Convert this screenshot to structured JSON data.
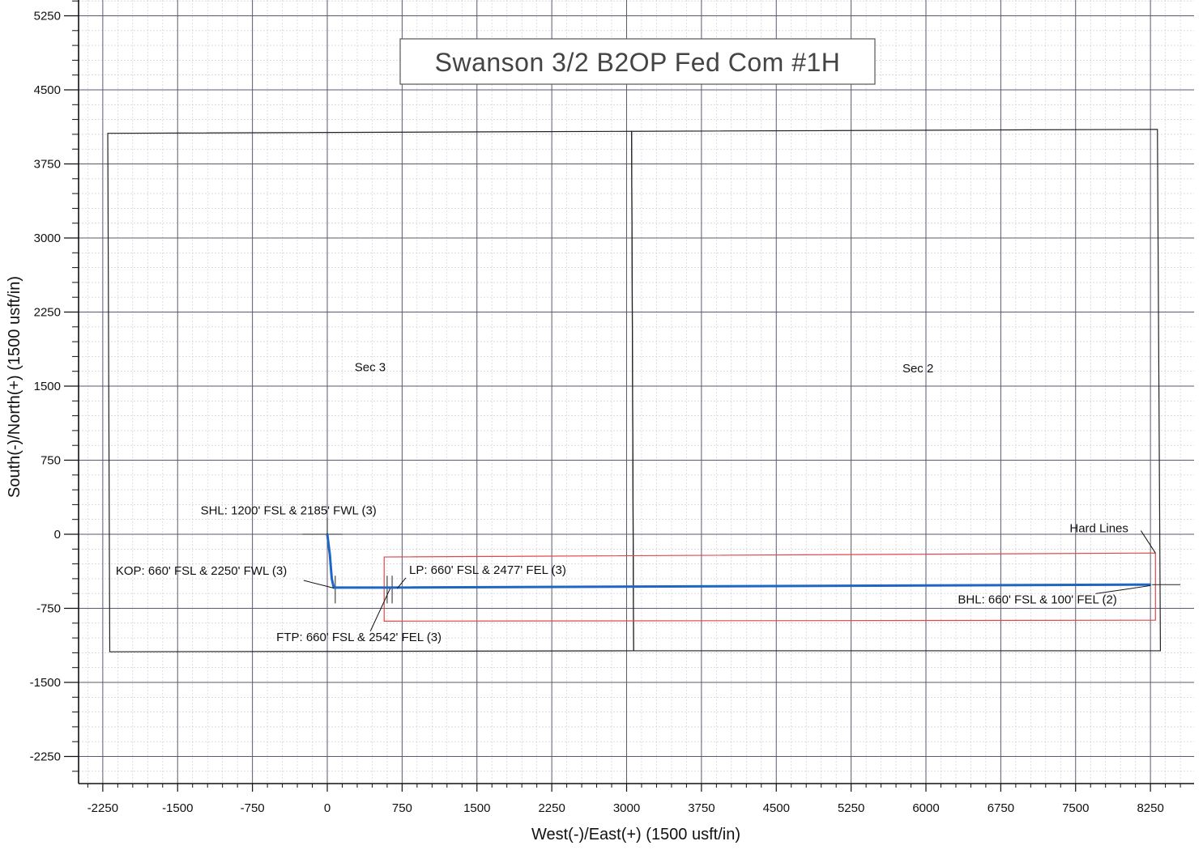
{
  "chart_data": {
    "type": "line",
    "title": "Swanson 3/2 B2OP Fed Com #1H",
    "xlabel": "West(-)/East(+) (1500 usft/in)",
    "ylabel": "South(-)/North(+) (1500 usft/in)",
    "xlim": [
      -2500,
      8750
    ],
    "ylim": [
      -2500,
      5250
    ],
    "x_ticks": [
      -2250,
      -1500,
      -750,
      0,
      750,
      1500,
      2250,
      3000,
      3750,
      4500,
      5250,
      6000,
      6750,
      7500,
      8250
    ],
    "y_ticks": [
      5250,
      4500,
      3750,
      3000,
      2250,
      1500,
      750,
      0,
      -750,
      -1500,
      -2250
    ],
    "grid": true,
    "sections": [
      {
        "label": "Sec 3",
        "label_at": [
          430,
          1650
        ],
        "corners": [
          [
            -2200,
            4060
          ],
          [
            3050,
            4080
          ],
          [
            3070,
            -1180
          ],
          [
            -2180,
            -1190
          ]
        ]
      },
      {
        "label": "Sec 2",
        "label_at": [
          5920,
          1640
        ],
        "corners": [
          [
            3050,
            4080
          ],
          [
            8320,
            4100
          ],
          [
            8350,
            -1180
          ],
          [
            3070,
            -1180
          ]
        ]
      }
    ],
    "hard_lines": {
      "label": "Hard Lines",
      "corners": [
        [
          570,
          -230
        ],
        [
          8300,
          -190
        ],
        [
          8300,
          -870
        ],
        [
          570,
          -880
        ]
      ]
    },
    "series": [
      {
        "x": [
          0,
          25,
          45,
          65,
          600,
          8250
        ],
        "y": [
          0,
          -200,
          -450,
          -540,
          -540,
          -510
        ],
        "color": "#1f66c4"
      }
    ],
    "annotations": [
      {
        "id": "shl",
        "text": "SHL: 1200' FSL & 2185' FWL (3)",
        "point": [
          0,
          0
        ],
        "text_at": [
          -1270,
          200
        ]
      },
      {
        "id": "kop",
        "text": "KOP: 660' FSL & 2250' FWL (3)",
        "point": [
          65,
          -545
        ],
        "text_at": [
          -2120,
          -410
        ]
      },
      {
        "id": "lp",
        "text": "LP: 660' FSL & 2477' FEL (3)",
        "point": [
          700,
          -550
        ],
        "text_at": [
          820,
          -400
        ]
      },
      {
        "id": "ftp",
        "text": "FTP: 660' FSL & 2542' FEL (3)",
        "point": [
          630,
          -550
        ],
        "text_at": [
          -510,
          -1080
        ]
      },
      {
        "id": "bhl",
        "text": "BHL: 660' FSL & 100' FEL (2)",
        "point": [
          8250,
          -520
        ],
        "text_at": [
          6320,
          -700
        ]
      },
      {
        "id": "hardlines",
        "text": "Hard Lines",
        "point": [
          8300,
          -190
        ],
        "text_at": [
          7440,
          20
        ]
      }
    ],
    "colors": {
      "trajectory": "#1f66c4",
      "hard_lines": "#e04848",
      "grid_major": "#5a5a6e",
      "grid_minor": "#c8c8d4"
    }
  }
}
